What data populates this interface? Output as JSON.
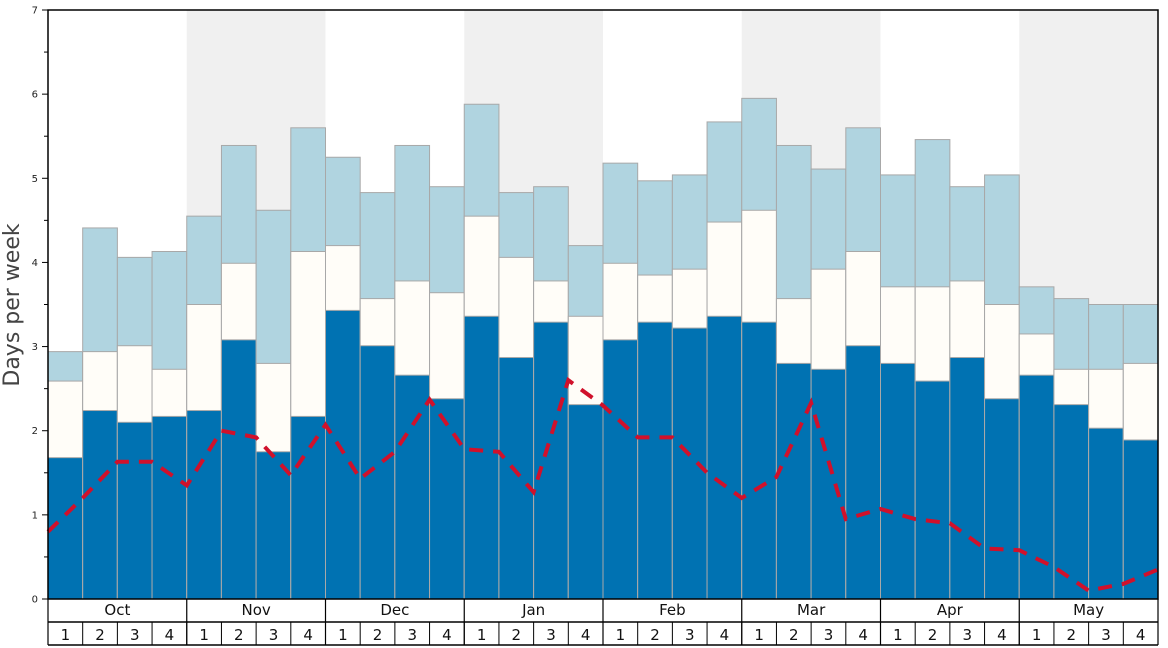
{
  "chart_data": {
    "type": "bar",
    "ylabel": "Days per week",
    "ylim": [
      0,
      7
    ],
    "yticks": [
      "0",
      "1",
      "2",
      "3",
      "4",
      "5",
      "6",
      "7"
    ],
    "months": [
      "Oct",
      "Nov",
      "Dec",
      "Jan",
      "Feb",
      "Mar",
      "Apr",
      "May"
    ],
    "week_labels": [
      "1",
      "2",
      "3",
      "4"
    ],
    "stacked_cumulative": true,
    "series": [
      {
        "key": "base",
        "color": "#0072b2",
        "values": [
          1.68,
          2.24,
          2.1,
          2.17,
          2.24,
          3.08,
          1.75,
          2.17,
          3.43,
          3.01,
          2.66,
          2.38,
          3.36,
          2.87,
          3.29,
          2.31,
          3.08,
          3.29,
          3.22,
          3.36,
          3.29,
          2.8,
          2.73,
          3.01,
          2.8,
          2.59,
          2.87,
          2.38,
          2.66,
          2.31,
          2.03,
          1.89
        ]
      },
      {
        "key": "middle",
        "color": "#fffdf8",
        "values": [
          2.59,
          2.94,
          3.01,
          2.73,
          3.5,
          3.99,
          2.8,
          4.13,
          4.2,
          3.57,
          3.78,
          3.64,
          4.55,
          4.06,
          3.78,
          3.36,
          3.99,
          3.85,
          3.92,
          4.48,
          4.62,
          3.57,
          3.92,
          4.13,
          3.71,
          3.71,
          3.78,
          3.5,
          3.15,
          2.73,
          2.73,
          2.8
        ]
      },
      {
        "key": "top",
        "color": "#b0d4e0",
        "values": [
          2.94,
          4.41,
          4.06,
          4.13,
          4.55,
          5.39,
          4.62,
          5.6,
          5.25,
          4.83,
          5.39,
          4.9,
          5.88,
          4.83,
          4.9,
          4.2,
          5.18,
          4.97,
          5.04,
          5.67,
          5.95,
          5.39,
          5.11,
          5.6,
          5.04,
          5.46,
          4.9,
          5.04,
          3.71,
          3.57,
          3.5,
          3.5
        ]
      }
    ],
    "line": {
      "style": "dashed",
      "color": "#d0112b",
      "values": [
        0.8,
        1.2,
        1.63,
        1.63,
        1.35,
        2.0,
        1.92,
        1.47,
        2.07,
        1.43,
        1.75,
        2.37,
        1.78,
        1.75,
        1.27,
        2.6,
        2.3,
        1.92,
        1.92,
        1.5,
        1.2,
        1.45,
        2.33,
        0.95,
        1.07,
        0.95,
        0.9,
        0.6,
        0.58,
        0.38,
        0.1,
        0.18,
        0.35
      ]
    },
    "shaded_months": [
      "Nov",
      "Jan",
      "Mar",
      "May"
    ],
    "shade_color": "#f0f0f0"
  }
}
